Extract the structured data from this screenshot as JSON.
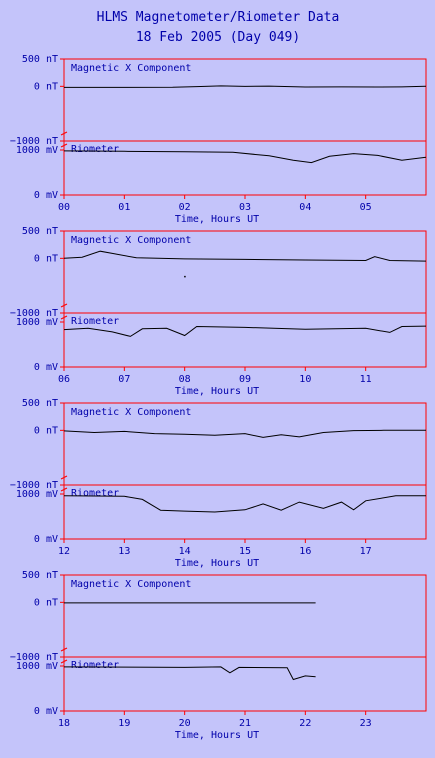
{
  "page": {
    "title_line1": "HLMS Magnetometer/Riometer Data",
    "title_line2": "18 Feb 2005 (Day 049)"
  },
  "colors": {
    "background": "#c4c4fa",
    "frame": "#ff0000",
    "text": "#0000aa",
    "trace": "#000000"
  },
  "chart_data": [
    {
      "type": "line",
      "panel": 1,
      "hours_range": [
        0,
        6
      ],
      "x_ticks": [
        "00",
        "01",
        "02",
        "03",
        "04",
        "05"
      ],
      "xlabel": "Time, Hours UT",
      "mag": {
        "label": "Magnetic X Component",
        "ylim": [
          -1000,
          500
        ],
        "y_ticks": [
          "500 nT",
          "0 nT",
          "−1000 nT"
        ],
        "series": [
          {
            "x": 0.0,
            "y": -20
          },
          {
            "x": 1.0,
            "y": -20
          },
          {
            "x": 1.8,
            "y": -18
          },
          {
            "x": 2.2,
            "y": -5
          },
          {
            "x": 2.6,
            "y": 8
          },
          {
            "x": 3.0,
            "y": -2
          },
          {
            "x": 3.4,
            "y": 5
          },
          {
            "x": 4.0,
            "y": -12
          },
          {
            "x": 4.6,
            "y": -10
          },
          {
            "x": 5.2,
            "y": -12
          },
          {
            "x": 5.6,
            "y": -10
          },
          {
            "x": 6.0,
            "y": 0
          }
        ]
      },
      "rio": {
        "label": "Riometer",
        "ylim": [
          0,
          1200
        ],
        "y_ticks": [
          "1000 mV",
          "0 mV"
        ],
        "series": [
          {
            "x": 0.0,
            "y": 980
          },
          {
            "x": 1.0,
            "y": 970
          },
          {
            "x": 2.0,
            "y": 960
          },
          {
            "x": 2.8,
            "y": 950
          },
          {
            "x": 3.4,
            "y": 870
          },
          {
            "x": 3.8,
            "y": 770
          },
          {
            "x": 4.1,
            "y": 720
          },
          {
            "x": 4.4,
            "y": 860
          },
          {
            "x": 4.8,
            "y": 920
          },
          {
            "x": 5.2,
            "y": 880
          },
          {
            "x": 5.6,
            "y": 770
          },
          {
            "x": 6.0,
            "y": 840
          }
        ]
      }
    },
    {
      "type": "line",
      "panel": 2,
      "hours_range": [
        6,
        12
      ],
      "x_ticks": [
        "06",
        "07",
        "08",
        "09",
        "10",
        "11"
      ],
      "xlabel": "Time, Hours UT",
      "mag": {
        "label": "Magnetic X Component",
        "ylim": [
          -1000,
          500
        ],
        "y_ticks": [
          "500 nT",
          "0 nT",
          "−1000 nT"
        ],
        "series": [
          {
            "x": 6.0,
            "y": 0
          },
          {
            "x": 6.3,
            "y": 20
          },
          {
            "x": 6.6,
            "y": 130
          },
          {
            "x": 6.8,
            "y": 90
          },
          {
            "x": 7.2,
            "y": 10
          },
          {
            "x": 8.0,
            "y": -10
          },
          {
            "x": 9.0,
            "y": -20
          },
          {
            "x": 10.0,
            "y": -30
          },
          {
            "x": 11.0,
            "y": -40
          },
          {
            "x": 11.15,
            "y": 30
          },
          {
            "x": 11.4,
            "y": -40
          },
          {
            "x": 12.0,
            "y": -50
          }
        ],
        "outliers": [
          {
            "x": 8.0,
            "y": -330
          }
        ]
      },
      "rio": {
        "label": "Riometer",
        "ylim": [
          0,
          1200
        ],
        "y_ticks": [
          "1000 mV",
          "0 mV"
        ],
        "series": [
          {
            "x": 6.0,
            "y": 830
          },
          {
            "x": 6.4,
            "y": 860
          },
          {
            "x": 6.8,
            "y": 780
          },
          {
            "x": 7.1,
            "y": 680
          },
          {
            "x": 7.3,
            "y": 850
          },
          {
            "x": 7.7,
            "y": 860
          },
          {
            "x": 8.0,
            "y": 700
          },
          {
            "x": 8.2,
            "y": 900
          },
          {
            "x": 9.0,
            "y": 880
          },
          {
            "x": 10.0,
            "y": 840
          },
          {
            "x": 11.0,
            "y": 860
          },
          {
            "x": 11.4,
            "y": 770
          },
          {
            "x": 11.6,
            "y": 900
          },
          {
            "x": 12.0,
            "y": 910
          }
        ]
      }
    },
    {
      "type": "line",
      "panel": 3,
      "hours_range": [
        12,
        18
      ],
      "x_ticks": [
        "12",
        "13",
        "14",
        "15",
        "16",
        "17"
      ],
      "xlabel": "Time, Hours UT",
      "mag": {
        "label": "Magnetic X Component",
        "ylim": [
          -1000,
          500
        ],
        "y_ticks": [
          "500 nT",
          "0 nT",
          "−1000 nT"
        ],
        "series": [
          {
            "x": 12.0,
            "y": -10
          },
          {
            "x": 12.5,
            "y": -40
          },
          {
            "x": 13.0,
            "y": -20
          },
          {
            "x": 13.5,
            "y": -60
          },
          {
            "x": 14.0,
            "y": -70
          },
          {
            "x": 14.5,
            "y": -90
          },
          {
            "x": 15.0,
            "y": -60
          },
          {
            "x": 15.3,
            "y": -130
          },
          {
            "x": 15.6,
            "y": -80
          },
          {
            "x": 15.9,
            "y": -120
          },
          {
            "x": 16.3,
            "y": -40
          },
          {
            "x": 16.8,
            "y": -5
          },
          {
            "x": 17.3,
            "y": 0
          },
          {
            "x": 18.0,
            "y": 0
          }
        ]
      },
      "rio": {
        "label": "Riometer",
        "ylim": [
          0,
          1200
        ],
        "y_ticks": [
          "1000 mV",
          "0 mV"
        ],
        "series": [
          {
            "x": 12.0,
            "y": 960
          },
          {
            "x": 13.0,
            "y": 950
          },
          {
            "x": 13.3,
            "y": 880
          },
          {
            "x": 13.6,
            "y": 640
          },
          {
            "x": 14.0,
            "y": 620
          },
          {
            "x": 14.5,
            "y": 600
          },
          {
            "x": 15.0,
            "y": 650
          },
          {
            "x": 15.3,
            "y": 780
          },
          {
            "x": 15.6,
            "y": 640
          },
          {
            "x": 15.9,
            "y": 820
          },
          {
            "x": 16.3,
            "y": 680
          },
          {
            "x": 16.6,
            "y": 820
          },
          {
            "x": 16.8,
            "y": 650
          },
          {
            "x": 17.0,
            "y": 850
          },
          {
            "x": 17.5,
            "y": 960
          },
          {
            "x": 18.0,
            "y": 960
          }
        ]
      }
    },
    {
      "type": "line",
      "panel": 4,
      "hours_range": [
        18,
        24
      ],
      "x_ticks": [
        "18",
        "19",
        "20",
        "21",
        "22",
        "23"
      ],
      "xlabel": "Time, Hours UT",
      "mag": {
        "label": "Magnetic X Component",
        "ylim": [
          -1000,
          500
        ],
        "y_ticks": [
          "500 nT",
          "0 nT",
          "−1000 nT"
        ],
        "series": [
          {
            "x": 18.0,
            "y": -10
          },
          {
            "x": 20.0,
            "y": -10
          },
          {
            "x": 22.17,
            "y": -10
          }
        ]
      },
      "rio": {
        "label": "Riometer",
        "ylim": [
          0,
          1200
        ],
        "y_ticks": [
          "1000 mV",
          "0 mV"
        ],
        "series": [
          {
            "x": 18.0,
            "y": 980
          },
          {
            "x": 20.0,
            "y": 970
          },
          {
            "x": 20.6,
            "y": 980
          },
          {
            "x": 20.75,
            "y": 850
          },
          {
            "x": 20.9,
            "y": 970
          },
          {
            "x": 21.7,
            "y": 960
          },
          {
            "x": 21.8,
            "y": 700
          },
          {
            "x": 22.0,
            "y": 780
          },
          {
            "x": 22.17,
            "y": 760
          }
        ]
      }
    }
  ]
}
